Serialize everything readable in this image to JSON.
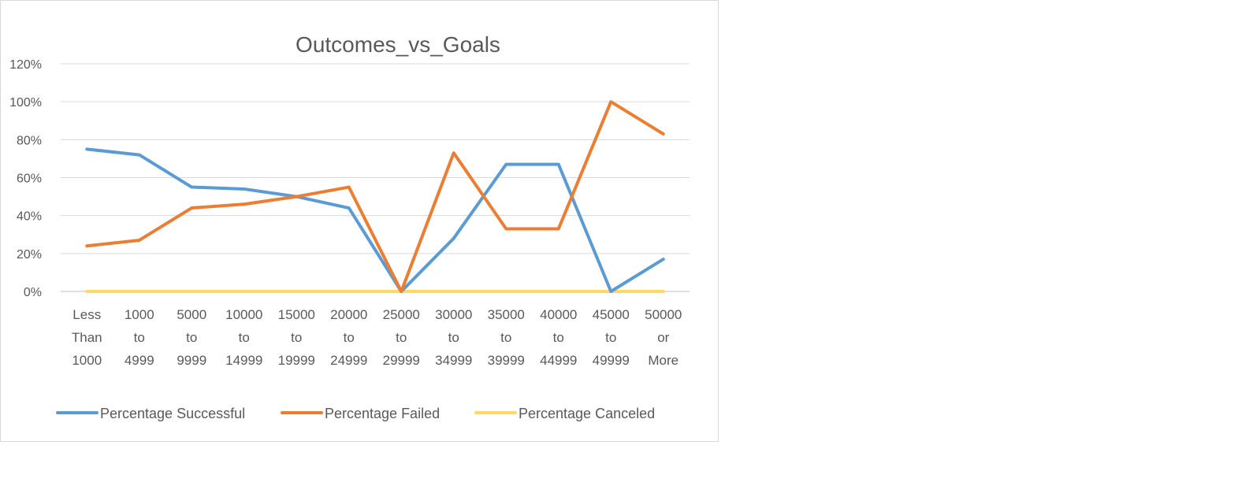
{
  "chart_data": {
    "type": "line",
    "title": "Outcomes_vs_Goals",
    "xlabel": "",
    "ylabel": "",
    "ylim": [
      0,
      1.2
    ],
    "ytick_labels": [
      "0%",
      "20%",
      "40%",
      "60%",
      "80%",
      "100%",
      "120%"
    ],
    "categories": [
      "Less Than 1000",
      "1000 to 4999",
      "5000 to 9999",
      "10000 to 14999",
      "15000 to 19999",
      "20000 to 24999",
      "25000 to 29999",
      "30000 to 34999",
      "35000 to 39999",
      "40000 to 44999",
      "45000 to 49999",
      "50000 or More"
    ],
    "category_lines": [
      [
        "Less",
        "Than",
        "1000"
      ],
      [
        "1000",
        "to",
        "4999"
      ],
      [
        "5000",
        "to",
        "9999"
      ],
      [
        "10000",
        "to",
        "14999"
      ],
      [
        "15000",
        "to",
        "19999"
      ],
      [
        "20000",
        "to",
        "24999"
      ],
      [
        "25000",
        "to",
        "29999"
      ],
      [
        "30000",
        "to",
        "34999"
      ],
      [
        "35000",
        "to",
        "39999"
      ],
      [
        "40000",
        "to",
        "44999"
      ],
      [
        "45000",
        "to",
        "49999"
      ],
      [
        "50000",
        "or",
        "More"
      ]
    ],
    "series": [
      {
        "name": "Percentage Successful",
        "color": "#5b9bd5",
        "values": [
          0.75,
          0.72,
          0.55,
          0.54,
          0.5,
          0.44,
          0.0,
          0.28,
          0.67,
          0.67,
          0.0,
          0.17
        ]
      },
      {
        "name": "Percentage Failed",
        "color": "#ed7d31",
        "values": [
          0.24,
          0.27,
          0.44,
          0.46,
          0.5,
          0.55,
          0.0,
          0.73,
          0.33,
          0.33,
          1.0,
          0.83
        ]
      },
      {
        "name": "Percentage Canceled",
        "color": "#ffd966",
        "values": [
          0,
          0,
          0,
          0,
          0,
          0,
          0,
          0,
          0,
          0,
          0,
          0
        ]
      }
    ],
    "grid": true,
    "legend_position": "bottom"
  }
}
